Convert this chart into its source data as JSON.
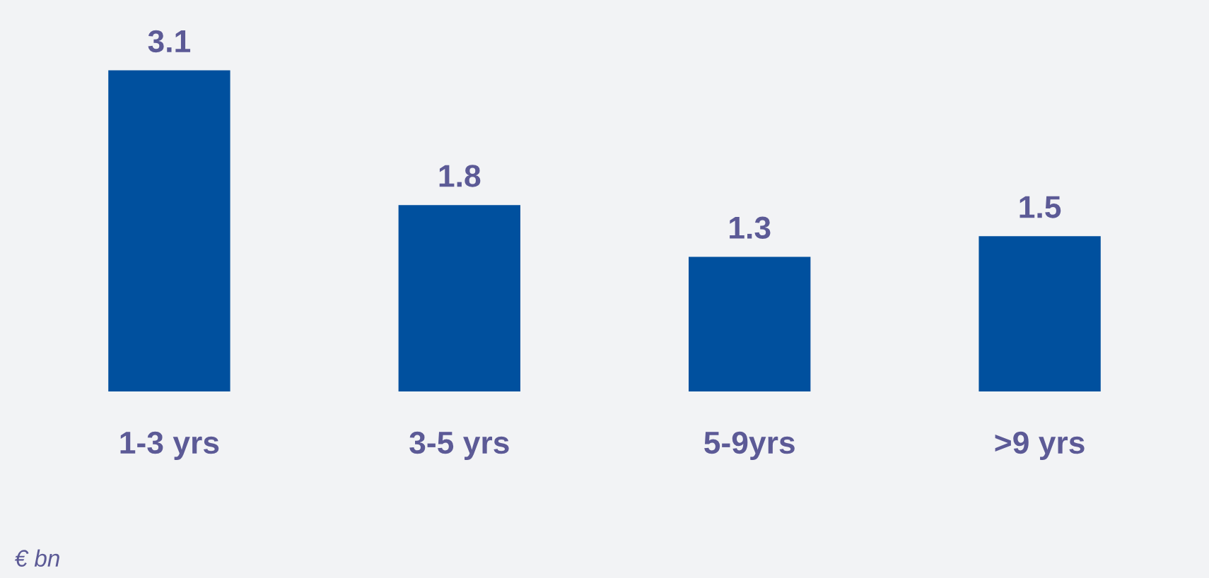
{
  "chart_data": {
    "type": "bar",
    "categories": [
      "1-3 yrs",
      "3-5 yrs",
      "5-9yrs",
      ">9 yrs"
    ],
    "values": [
      3.1,
      1.8,
      1.3,
      1.5
    ],
    "color": "#00509e",
    "data_labels": true,
    "annotations": [
      "€ bn"
    ]
  }
}
